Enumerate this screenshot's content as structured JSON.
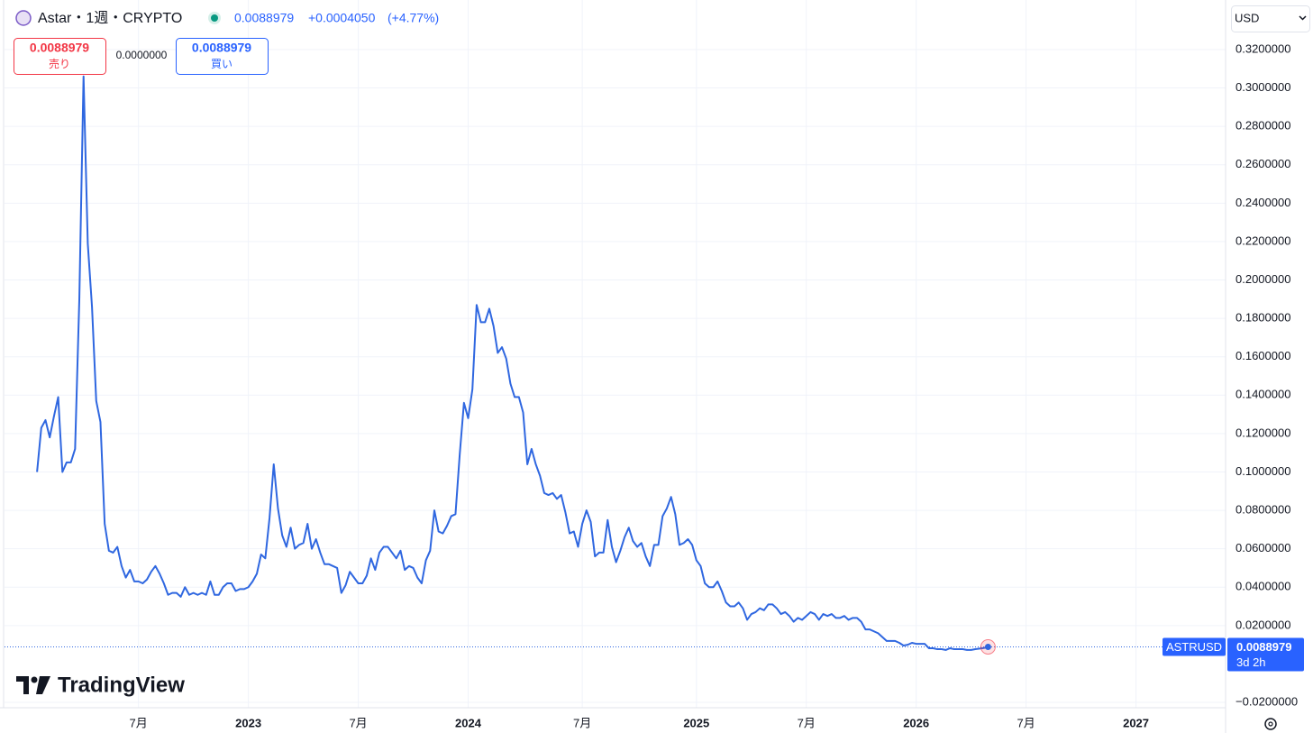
{
  "header": {
    "symbol": "Astar・1週・CRYPTO",
    "last_price": "0.0088979",
    "change": "+0.0004050",
    "change_percent": "(+4.77%)"
  },
  "trade": {
    "sell_price": "0.0088979",
    "sell_label": "売り",
    "spread": "0.0000000",
    "buy_price": "0.0088979",
    "buy_label": "買い"
  },
  "currency": "USD",
  "price_tag": {
    "symbol": "ASTRUSD",
    "value": "0.0088979",
    "countdown": "3d 2h"
  },
  "logo": "TradingView",
  "chart_data": {
    "type": "line",
    "series": [
      {
        "name": "ASTRUSD",
        "color": "#2f67e0",
        "values": [
          0.1,
          0.123,
          0.127,
          0.118,
          0.129,
          0.139,
          0.1,
          0.105,
          0.105,
          0.112,
          0.19,
          0.306,
          0.219,
          0.186,
          0.137,
          0.126,
          0.073,
          0.059,
          0.058,
          0.061,
          0.051,
          0.045,
          0.049,
          0.043,
          0.043,
          0.042,
          0.044,
          0.048,
          0.051,
          0.047,
          0.042,
          0.036,
          0.037,
          0.037,
          0.035,
          0.04,
          0.036,
          0.037,
          0.036,
          0.037,
          0.036,
          0.043,
          0.036,
          0.036,
          0.04,
          0.042,
          0.042,
          0.038,
          0.039,
          0.039,
          0.04,
          0.043,
          0.047,
          0.057,
          0.055,
          0.076,
          0.104,
          0.081,
          0.067,
          0.061,
          0.071,
          0.06,
          0.062,
          0.063,
          0.073,
          0.06,
          0.065,
          0.058,
          0.052,
          0.052,
          0.051,
          0.05,
          0.037,
          0.041,
          0.048,
          0.045,
          0.042,
          0.042,
          0.046,
          0.055,
          0.049,
          0.058,
          0.061,
          0.061,
          0.058,
          0.055,
          0.059,
          0.049,
          0.051,
          0.05,
          0.045,
          0.042,
          0.054,
          0.059,
          0.08,
          0.069,
          0.068,
          0.072,
          0.077,
          0.078,
          0.109,
          0.136,
          0.128,
          0.143,
          0.187,
          0.178,
          0.178,
          0.185,
          0.176,
          0.162,
          0.165,
          0.159,
          0.146,
          0.139,
          0.139,
          0.131,
          0.104,
          0.112,
          0.104,
          0.098,
          0.089,
          0.088,
          0.089,
          0.086,
          0.088,
          0.079,
          0.068,
          0.069,
          0.061,
          0.073,
          0.08,
          0.074,
          0.056,
          0.058,
          0.058,
          0.075,
          0.061,
          0.053,
          0.059,
          0.066,
          0.071,
          0.064,
          0.061,
          0.063,
          0.056,
          0.051,
          0.062,
          0.062,
          0.077,
          0.081,
          0.087,
          0.078,
          0.062,
          0.063,
          0.065,
          0.062,
          0.054,
          0.051,
          0.042,
          0.04,
          0.04,
          0.043,
          0.038,
          0.032,
          0.03,
          0.03,
          0.032,
          0.029,
          0.023,
          0.026,
          0.027,
          0.029,
          0.028,
          0.031,
          0.031,
          0.029,
          0.026,
          0.027,
          0.025,
          0.022,
          0.024,
          0.023,
          0.025,
          0.027,
          0.026,
          0.023,
          0.026,
          0.025,
          0.026,
          0.024,
          0.024,
          0.025,
          0.023,
          0.024,
          0.024,
          0.022,
          0.018,
          0.018,
          0.017,
          0.016,
          0.014,
          0.012,
          0.012,
          0.012,
          0.011,
          0.0096,
          0.01,
          0.011,
          0.0105,
          0.0105,
          0.0105,
          0.0082,
          0.0082,
          0.0077,
          0.0077,
          0.0073,
          0.0082,
          0.0077,
          0.0077,
          0.0077,
          0.0073,
          0.0073,
          0.0077,
          0.008,
          0.0083,
          0.0088979
        ]
      }
    ],
    "xlim": [
      -7.7,
      281.2
    ],
    "xticks": [
      {
        "value": 24,
        "label": "7月"
      },
      {
        "value": 50,
        "label": "2023"
      },
      {
        "value": 76,
        "label": "7月"
      },
      {
        "value": 102,
        "label": "2024"
      },
      {
        "value": 129,
        "label": "7月"
      },
      {
        "value": 156,
        "label": "2025"
      },
      {
        "value": 182,
        "label": "7月"
      },
      {
        "value": 208,
        "label": "2026"
      },
      {
        "value": 234,
        "label": "7月"
      },
      {
        "value": 260,
        "label": "2027"
      }
    ],
    "ylim": [
      -0.0228,
      0.3458
    ],
    "yticks": [
      {
        "value": 0.32,
        "label": "0.3200000"
      },
      {
        "value": 0.3,
        "label": "0.3000000"
      },
      {
        "value": 0.28,
        "label": "0.2800000"
      },
      {
        "value": 0.26,
        "label": "0.2600000"
      },
      {
        "value": 0.24,
        "label": "0.2400000"
      },
      {
        "value": 0.22,
        "label": "0.2200000"
      },
      {
        "value": 0.2,
        "label": "0.2000000"
      },
      {
        "value": 0.18,
        "label": "0.1800000"
      },
      {
        "value": 0.16,
        "label": "0.1600000"
      },
      {
        "value": 0.14,
        "label": "0.1400000"
      },
      {
        "value": 0.12,
        "label": "0.1200000"
      },
      {
        "value": 0.1,
        "label": "0.1000000"
      },
      {
        "value": 0.08,
        "label": "0.0800000"
      },
      {
        "value": 0.06,
        "label": "0.0600000"
      },
      {
        "value": 0.04,
        "label": "0.0400000"
      },
      {
        "value": 0.02,
        "label": "0.0200000"
      },
      {
        "value": -0.02,
        "label": "−0.0200000"
      }
    ],
    "grid": true
  }
}
